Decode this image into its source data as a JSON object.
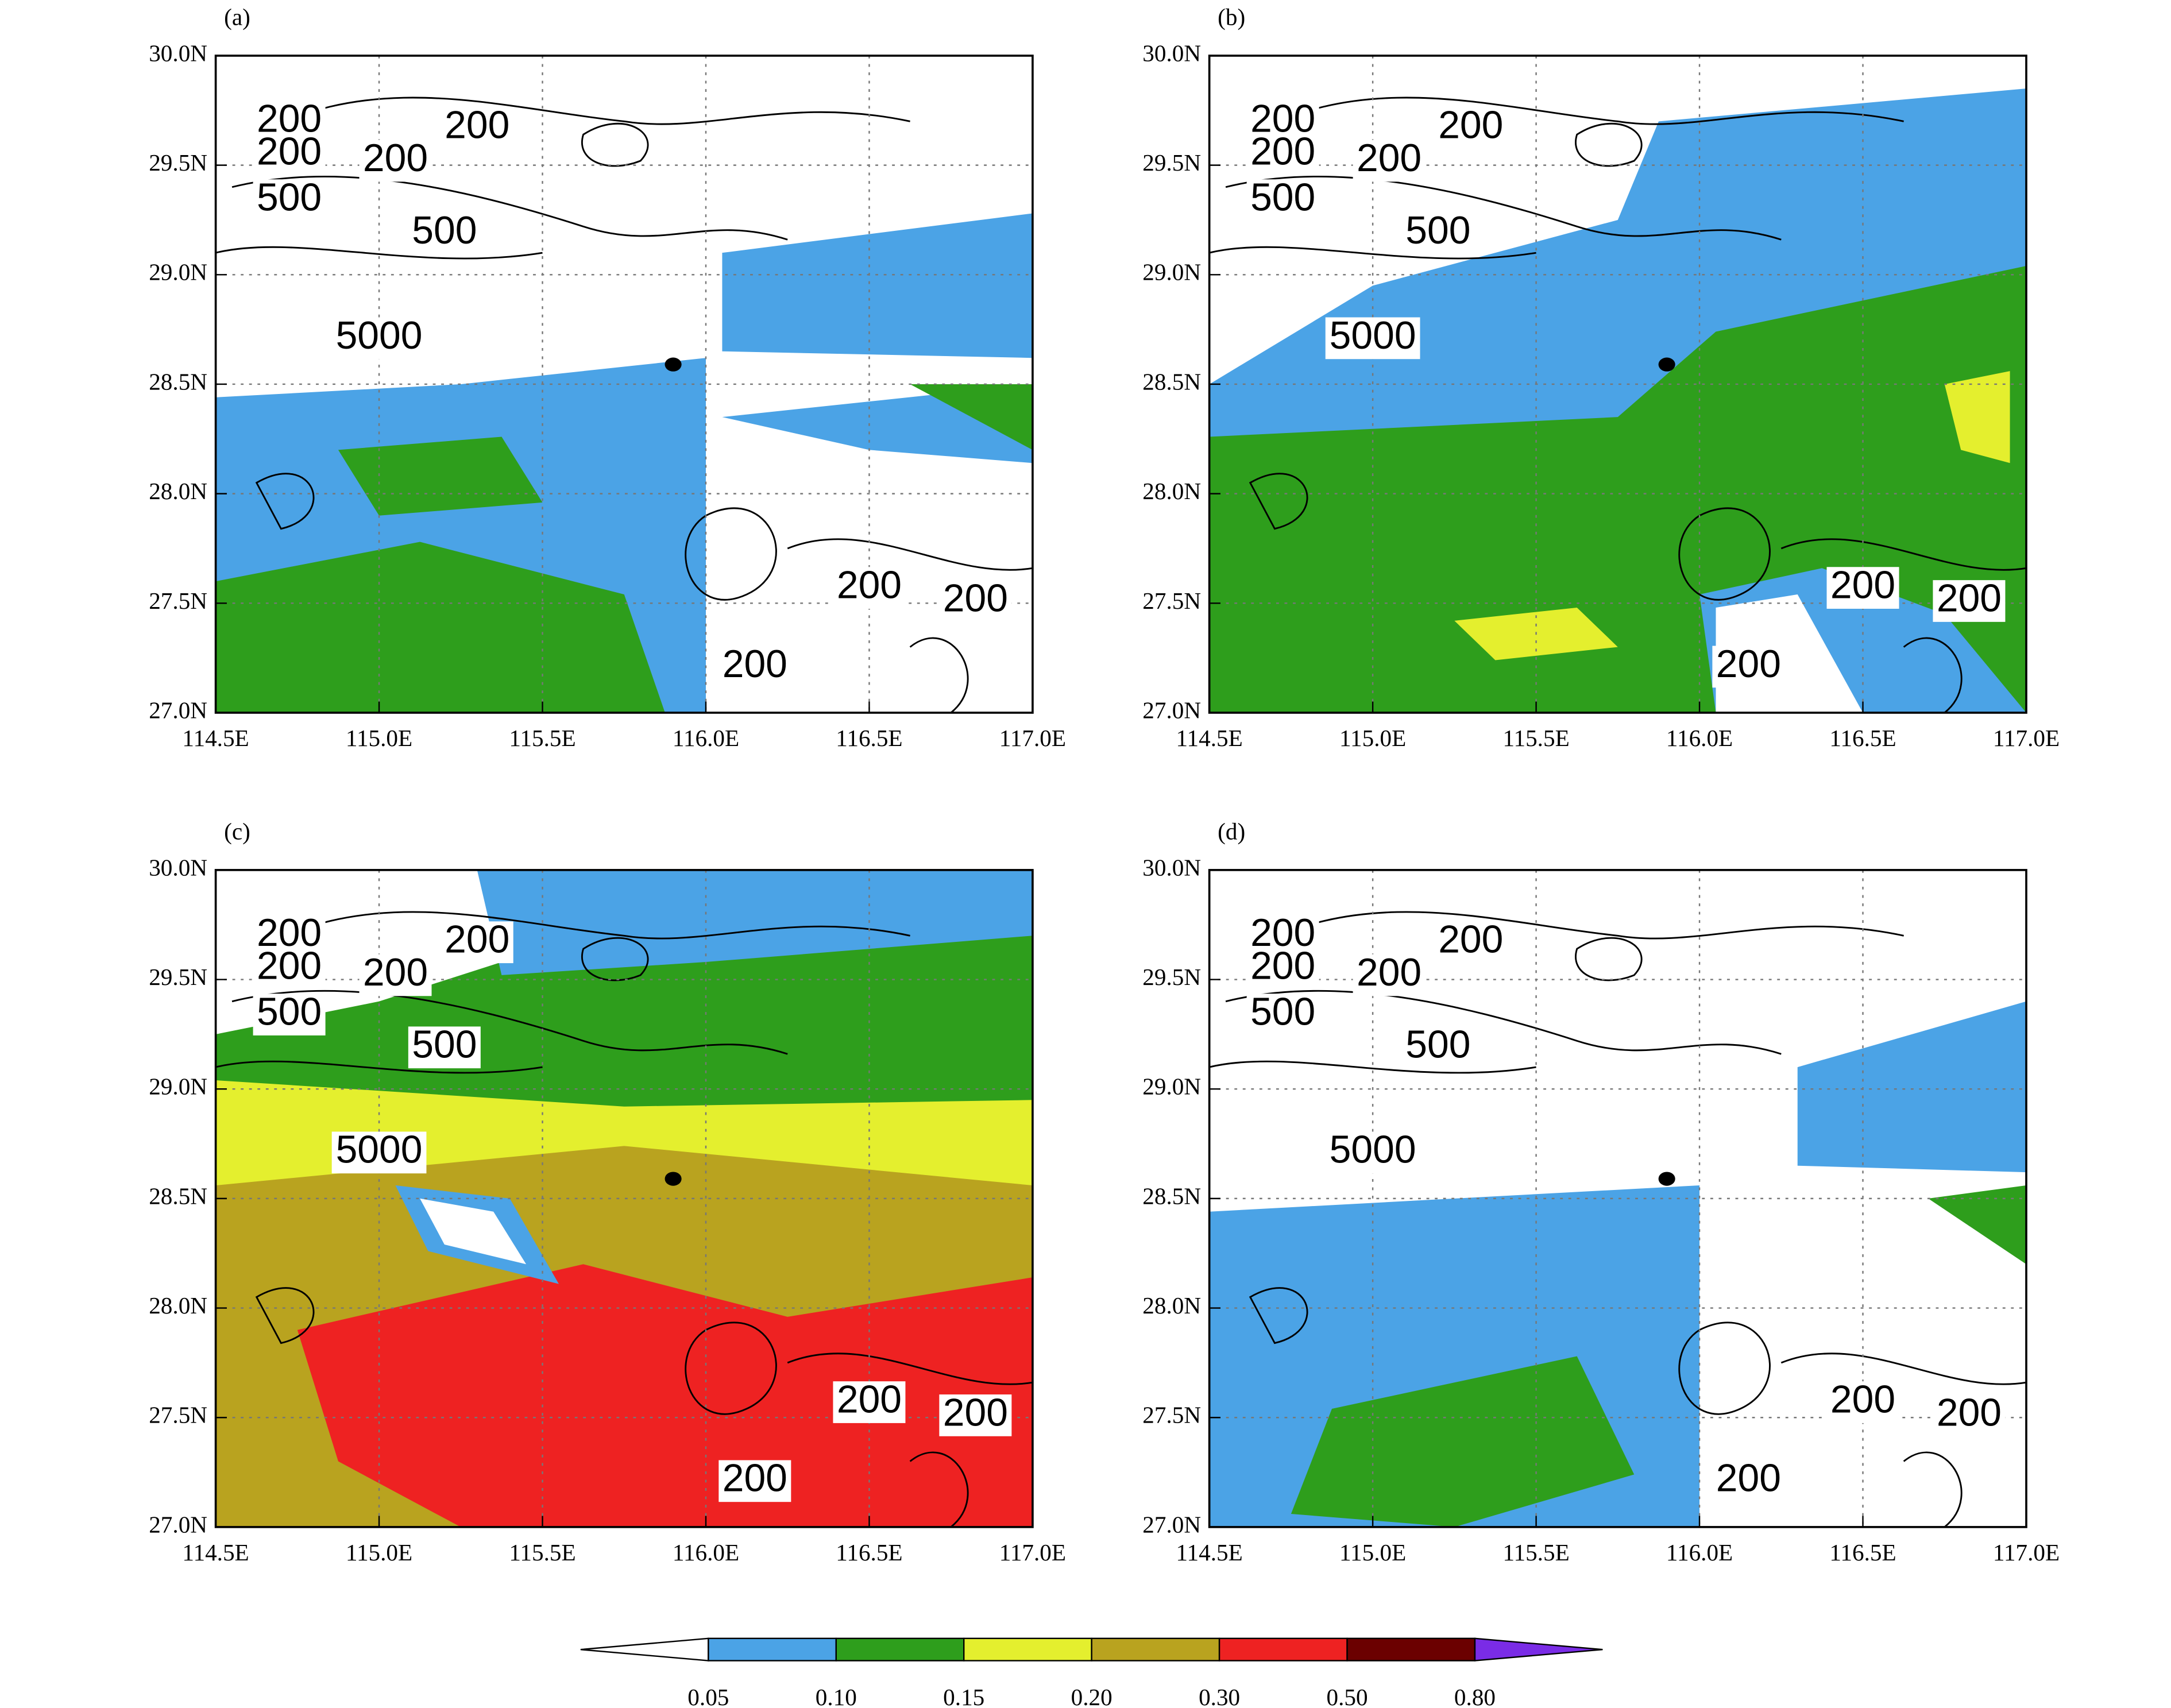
{
  "chart_data": [
    {
      "type": "map",
      "panel_label": "(a)",
      "xlim": [
        114.5,
        117.0
      ],
      "ylim": [
        27.0,
        30.0
      ],
      "xticks": [
        {
          "value": 114.5,
          "label": "114.5E"
        },
        {
          "value": 115.0,
          "label": "115.0E"
        },
        {
          "value": 115.5,
          "label": "115.5E"
        },
        {
          "value": 116.0,
          "label": "116.0E"
        },
        {
          "value": 116.5,
          "label": "116.5E"
        },
        {
          "value": 117.0,
          "label": "117.0E"
        }
      ],
      "yticks": [
        {
          "value": 27.0,
          "label": "27.0N"
        },
        {
          "value": 27.5,
          "label": "27.5N"
        },
        {
          "value": 28.0,
          "label": "28.0N"
        },
        {
          "value": 28.5,
          "label": "28.5N"
        },
        {
          "value": 29.0,
          "label": "29.0N"
        },
        {
          "value": 29.5,
          "label": "29.5N"
        },
        {
          "value": 30.0,
          "label": "30.0N"
        }
      ],
      "contour_labels": [
        "200",
        "200",
        "200",
        "200",
        "500",
        "500",
        "5000",
        "200",
        "200",
        "200"
      ]
    },
    {
      "type": "map",
      "panel_label": "(b)",
      "xlim": [
        114.5,
        117.0
      ],
      "ylim": [
        27.0,
        30.0
      ],
      "xticks": [
        {
          "value": 114.5,
          "label": "114.5E"
        },
        {
          "value": 115.0,
          "label": "115.0E"
        },
        {
          "value": 115.5,
          "label": "115.5E"
        },
        {
          "value": 116.0,
          "label": "116.0E"
        },
        {
          "value": 116.5,
          "label": "116.5E"
        },
        {
          "value": 117.0,
          "label": "117.0E"
        }
      ],
      "yticks": [
        {
          "value": 27.0,
          "label": "27.0N"
        },
        {
          "value": 27.5,
          "label": "27.5N"
        },
        {
          "value": 28.0,
          "label": "28.0N"
        },
        {
          "value": 28.5,
          "label": "28.5N"
        },
        {
          "value": 29.0,
          "label": "29.0N"
        },
        {
          "value": 29.5,
          "label": "29.5N"
        },
        {
          "value": 30.0,
          "label": "30.0N"
        }
      ],
      "contour_labels": [
        "200",
        "200",
        "200",
        "200",
        "500",
        "500",
        "5000",
        "200",
        "200",
        "200"
      ]
    },
    {
      "type": "map",
      "panel_label": "(c)",
      "xlim": [
        114.5,
        117.0
      ],
      "ylim": [
        27.0,
        30.0
      ],
      "xticks": [
        {
          "value": 114.5,
          "label": "114.5E"
        },
        {
          "value": 115.0,
          "label": "115.0E"
        },
        {
          "value": 115.5,
          "label": "115.5E"
        },
        {
          "value": 116.0,
          "label": "116.0E"
        },
        {
          "value": 116.5,
          "label": "116.5E"
        },
        {
          "value": 117.0,
          "label": "117.0E"
        }
      ],
      "yticks": [
        {
          "value": 27.0,
          "label": "27.0N"
        },
        {
          "value": 27.5,
          "label": "27.5N"
        },
        {
          "value": 28.0,
          "label": "28.0N"
        },
        {
          "value": 28.5,
          "label": "28.5N"
        },
        {
          "value": 29.0,
          "label": "29.0N"
        },
        {
          "value": 29.5,
          "label": "29.5N"
        },
        {
          "value": 30.0,
          "label": "30.0N"
        }
      ],
      "contour_labels": [
        "200",
        "200",
        "200",
        "200",
        "500",
        "500",
        "5000",
        "200",
        "200",
        "200"
      ]
    },
    {
      "type": "map",
      "panel_label": "(d)",
      "xlim": [
        114.5,
        117.0
      ],
      "ylim": [
        27.0,
        30.0
      ],
      "xticks": [
        {
          "value": 114.5,
          "label": "114.5E"
        },
        {
          "value": 115.0,
          "label": "115.0E"
        },
        {
          "value": 115.5,
          "label": "115.5E"
        },
        {
          "value": 116.0,
          "label": "116.0E"
        },
        {
          "value": 116.5,
          "label": "116.5E"
        },
        {
          "value": 117.0,
          "label": "117.0E"
        }
      ],
      "yticks": [
        {
          "value": 27.0,
          "label": "27.0N"
        },
        {
          "value": 27.5,
          "label": "27.5N"
        },
        {
          "value": 28.0,
          "label": "28.0N"
        },
        {
          "value": 28.5,
          "label": "28.5N"
        },
        {
          "value": 29.0,
          "label": "29.0N"
        },
        {
          "value": 29.5,
          "label": "29.5N"
        },
        {
          "value": 30.0,
          "label": "30.0N"
        }
      ],
      "contour_labels": [
        "200",
        "200",
        "200",
        "200",
        "500",
        "500",
        "5000",
        "200",
        "200",
        "200"
      ]
    }
  ],
  "colorbar": {
    "levels": [
      0.05,
      {
        "value": 0.1,
        "label": "0.10"
      },
      0.15,
      {
        "value": 0.2,
        "label": "0.20"
      },
      {
        "value": 0.3,
        "label": "0.30"
      },
      {
        "value": 0.5,
        "label": "0.50"
      },
      {
        "value": 0.8,
        "label": "0.80"
      }
    ],
    "colors": [
      "#ffffff",
      "#4ba3e6",
      "#2e9e1c",
      "#e4ef2e",
      "#b9a31f",
      "#ee2222",
      "#6b0000",
      "#7a2ce6"
    ]
  }
}
